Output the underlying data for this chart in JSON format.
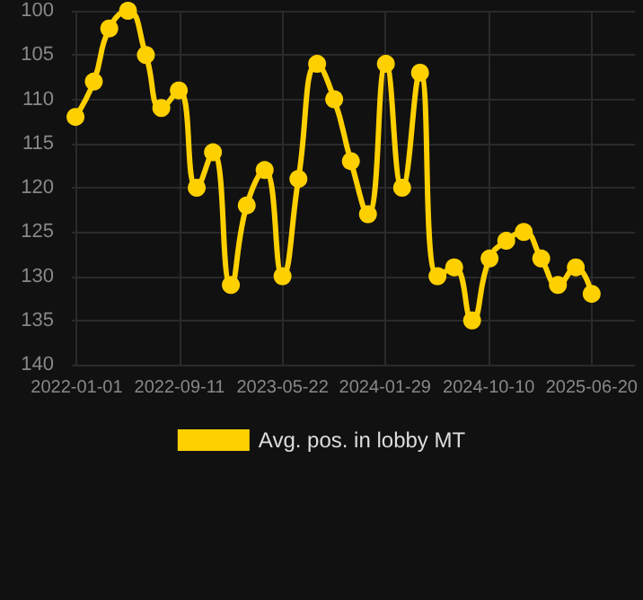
{
  "chart_data": {
    "type": "line",
    "x": [
      "2021-12-29",
      "2022-02-12",
      "2022-03-22",
      "2022-05-07",
      "2022-06-20",
      "2022-07-28",
      "2022-09-09",
      "2022-10-23",
      "2022-12-02",
      "2023-01-15",
      "2023-02-23",
      "2023-04-08",
      "2023-05-22",
      "2023-06-30",
      "2023-08-15",
      "2023-09-26",
      "2023-11-06",
      "2023-12-18",
      "2024-01-31",
      "2024-03-11",
      "2024-04-24",
      "2024-06-06",
      "2024-07-17",
      "2024-08-30",
      "2024-10-12",
      "2024-11-22",
      "2025-01-04",
      "2025-02-16",
      "2025-03-29",
      "2025-05-12",
      "2025-06-20"
    ],
    "series": [
      {
        "name": "Avg. pos. in lobby MT",
        "color": "#ffd000",
        "values": [
          112,
          108,
          102,
          100,
          105,
          111,
          109,
          120,
          116,
          131,
          122,
          118,
          130,
          119,
          106,
          110,
          117,
          123,
          106,
          120,
          107,
          130,
          129,
          135,
          128,
          126,
          125,
          128,
          131,
          129,
          132
        ]
      }
    ],
    "xlim": [
      "2021-12-20",
      "2025-10-05"
    ],
    "xticks": [
      "2022-01-01",
      "2022-09-11",
      "2023-05-22",
      "2024-01-29",
      "2024-10-10",
      "2025-06-20"
    ],
    "ylim": [
      140,
      100
    ],
    "yticks": [
      100,
      105,
      110,
      115,
      120,
      125,
      130,
      135,
      140
    ],
    "grid": true,
    "legend": "bottom",
    "marker": "circle",
    "line_style": "solid"
  }
}
